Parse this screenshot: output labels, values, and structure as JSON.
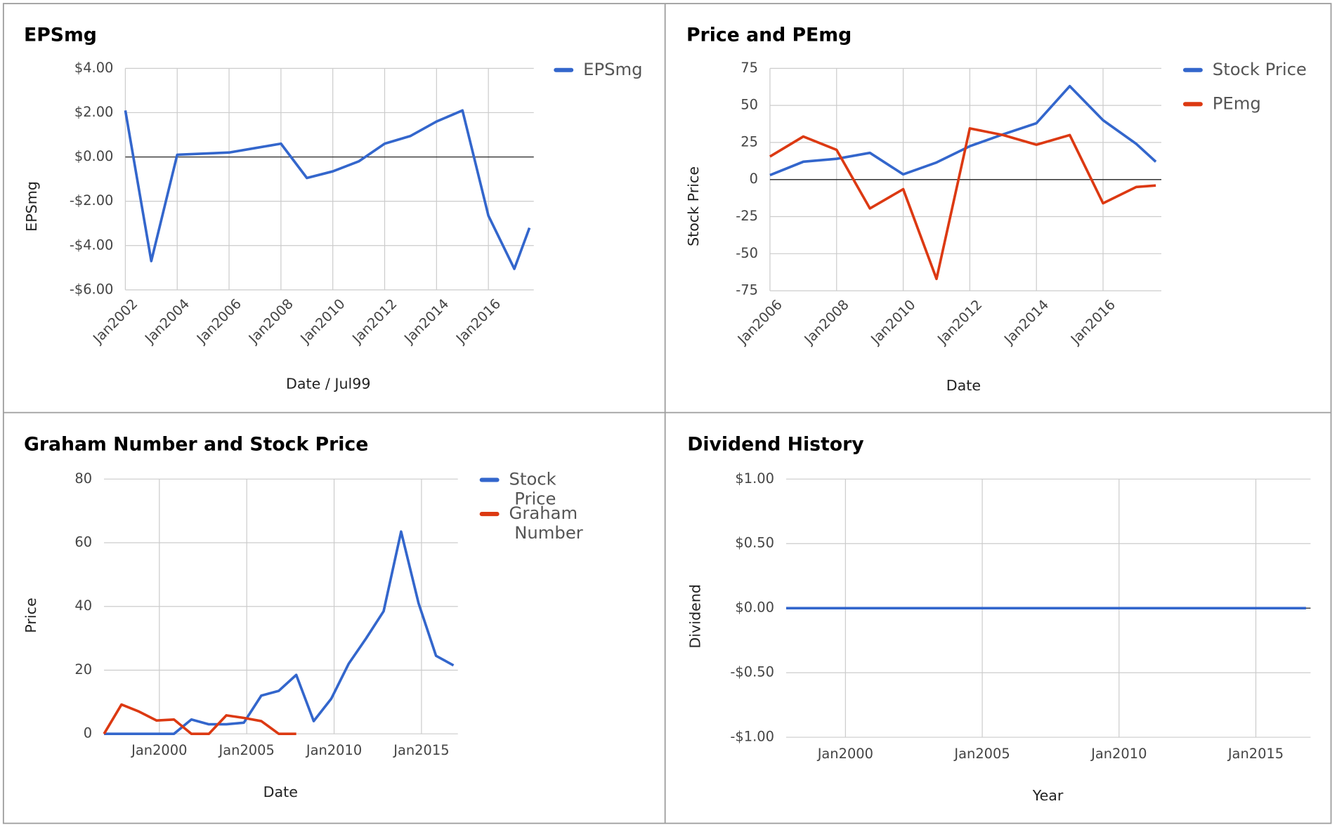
{
  "chart_data": [
    {
      "type": "line",
      "title": "EPSmg",
      "x_label": "Date / Jul99",
      "y_label": "EPSmg",
      "legend": "right",
      "grid": true,
      "x": [
        "2002-01",
        "2003-01",
        "2004-01",
        "2005-01",
        "2006-01",
        "2007-01",
        "2008-01",
        "2009-01",
        "2010-01",
        "2011-01",
        "2012-01",
        "2013-01",
        "2014-01",
        "2015-01",
        "2016-01",
        "2017-01",
        "2017-08"
      ],
      "series": [
        {
          "name": "EPSmg",
          "color": "#3366cc",
          "values": [
            2.1,
            -4.7,
            0.1,
            0.15,
            0.2,
            0.4,
            0.6,
            -0.95,
            -0.65,
            -0.2,
            0.6,
            0.95,
            1.6,
            2.1,
            -2.65,
            -5.05,
            -3.2
          ]
        }
      ],
      "xlim": [
        "2002-01",
        "2017-10"
      ],
      "xticks": [
        {
          "value": "2002-01",
          "label": "Jan2002"
        },
        {
          "value": "2004-01",
          "label": "Jan2004"
        },
        {
          "value": "2006-01",
          "label": "Jan2006"
        },
        {
          "value": "2008-01",
          "label": "Jan2008"
        },
        {
          "value": "2010-01",
          "label": "Jan2010"
        },
        {
          "value": "2012-01",
          "label": "Jan2012"
        },
        {
          "value": "2014-01",
          "label": "Jan2014"
        },
        {
          "value": "2016-01",
          "label": "Jan2016"
        }
      ],
      "ylim": [
        -6,
        4
      ],
      "yticks": [
        {
          "value": 4,
          "label": "$4.00"
        },
        {
          "value": 2,
          "label": "$2.00"
        },
        {
          "value": 0,
          "label": "$0.00"
        },
        {
          "value": -2,
          "label": "-$2.00"
        },
        {
          "value": -4,
          "label": "-$4.00"
        },
        {
          "value": -6,
          "label": "-$6.00"
        }
      ]
    },
    {
      "type": "line",
      "title": "Price and PEmg",
      "x_label": "Date",
      "y_label": "Stock Price",
      "legend": "right",
      "grid": true,
      "x": [
        "2006-01",
        "2007-01",
        "2008-01",
        "2009-01",
        "2010-01",
        "2011-01",
        "2012-01",
        "2013-01",
        "2014-01",
        "2015-01",
        "2016-01",
        "2017-01",
        "2017-08"
      ],
      "series": [
        {
          "name": "Stock Price",
          "color": "#3366cc",
          "values": [
            3,
            12,
            14,
            18,
            3.5,
            11.5,
            22.5,
            30.5,
            38,
            63,
            40,
            24,
            12
          ]
        },
        {
          "name": "PEmg",
          "color": "#dc3912",
          "values": [
            15.5,
            29,
            20,
            -19.5,
            -6.5,
            -67,
            34.5,
            30,
            23.5,
            30,
            -16,
            -5,
            -4
          ]
        }
      ],
      "xlim": [
        "2006-01",
        "2017-10"
      ],
      "xticks": [
        {
          "value": "2006-01",
          "label": "Jan2006"
        },
        {
          "value": "2008-01",
          "label": "Jan2008"
        },
        {
          "value": "2010-01",
          "label": "Jan2010"
        },
        {
          "value": "2012-01",
          "label": "Jan2012"
        },
        {
          "value": "2014-01",
          "label": "Jan2014"
        },
        {
          "value": "2016-01",
          "label": "Jan2016"
        }
      ],
      "ylim": [
        -75,
        75
      ],
      "yticks": [
        75,
        50,
        25,
        0,
        -25,
        -50,
        -75
      ]
    },
    {
      "type": "line",
      "title": "Graham Number and Stock Price",
      "x_label": "Date",
      "y_label": "Price",
      "legend": "right",
      "grid": true,
      "x": [
        "1996-11",
        "1997-11",
        "1998-11",
        "1999-11",
        "2000-11",
        "2001-11",
        "2002-11",
        "2003-11",
        "2004-11",
        "2005-11",
        "2006-11",
        "2007-11",
        "2008-11",
        "2009-11",
        "2010-11",
        "2011-11",
        "2012-11",
        "2013-11",
        "2014-11",
        "2015-11",
        "2016-11"
      ],
      "series": [
        {
          "name": "Stock Price",
          "color": "#3366cc",
          "values": [
            0,
            0,
            0,
            0,
            0,
            4.5,
            3,
            3,
            3.5,
            12,
            13.5,
            18.5,
            4,
            11,
            22,
            30,
            38.5,
            63.5,
            41,
            24.5,
            21.5
          ]
        },
        {
          "name": "Graham Number",
          "color": "#dc3912",
          "values": [
            0,
            9.2,
            7,
            4.2,
            4.5,
            0,
            0,
            5.8,
            5,
            4,
            0,
            0,
            null,
            null,
            null,
            null,
            null,
            null,
            null,
            null,
            null
          ]
        }
      ],
      "xlim": [
        "1996-11",
        "2017-02"
      ],
      "xticks": [
        {
          "value": "2000-01",
          "label": "Jan2000"
        },
        {
          "value": "2005-01",
          "label": "Jan2005"
        },
        {
          "value": "2010-01",
          "label": "Jan2010"
        },
        {
          "value": "2015-01",
          "label": "Jan2015"
        }
      ],
      "ylim": [
        0,
        80
      ],
      "yticks": [
        80,
        60,
        40,
        20,
        0
      ]
    },
    {
      "type": "line",
      "title": "Dividend History",
      "x_label": "Year",
      "y_label": "Dividend",
      "legend": "none",
      "grid": true,
      "x": [
        "1997-11",
        "1998-11",
        "1999-11",
        "2000-11",
        "2001-11",
        "2002-11",
        "2003-11",
        "2004-11",
        "2005-11",
        "2006-11",
        "2007-11",
        "2008-11",
        "2009-11",
        "2010-11",
        "2011-11",
        "2012-11",
        "2013-11",
        "2014-11",
        "2015-11",
        "2016-11"
      ],
      "series": [
        {
          "color": "#3366cc",
          "values": [
            0,
            0,
            0,
            0,
            0,
            0,
            0,
            0,
            0,
            0,
            0,
            0,
            0,
            0,
            0,
            0,
            0,
            0,
            0,
            0
          ]
        }
      ],
      "xlim": [
        "1997-11",
        "2017-01"
      ],
      "xticks": [
        {
          "value": "2000-01",
          "label": "Jan2000"
        },
        {
          "value": "2005-01",
          "label": "Jan2005"
        },
        {
          "value": "2010-01",
          "label": "Jan2010"
        },
        {
          "value": "2015-01",
          "label": "Jan2015"
        }
      ],
      "ylim": [
        -1,
        1
      ],
      "yticks": [
        {
          "value": 1,
          "label": "$1.00"
        },
        {
          "value": 0.5,
          "label": "$0.50"
        },
        {
          "value": 0,
          "label": "$0.00"
        },
        {
          "value": -0.5,
          "label": "-$0.50"
        },
        {
          "value": -1,
          "label": "-$1.00"
        }
      ]
    }
  ]
}
